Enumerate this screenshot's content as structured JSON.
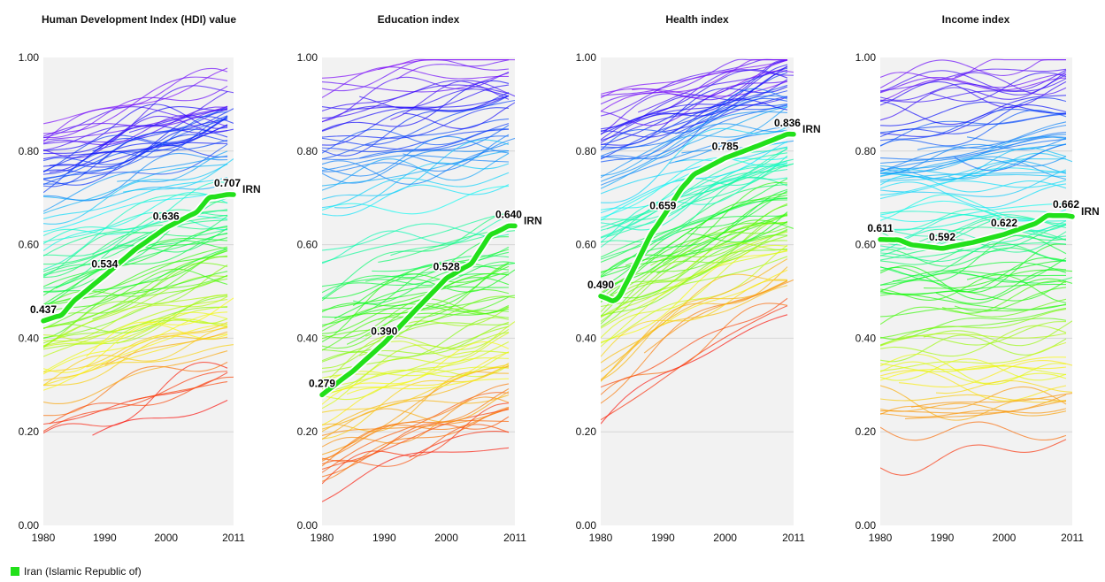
{
  "highlight_color": "#22e01a",
  "legend": {
    "label": "Iran (Islamic Republic of)"
  },
  "chart_data": [
    {
      "type": "line",
      "title": "Human Development Index (HDI) value",
      "xlabel": "",
      "ylabel": "",
      "xlim": [
        1980,
        2011
      ],
      "ylim": [
        0,
        1
      ],
      "x_ticks": [
        "1980",
        "1990",
        "2000",
        "2011"
      ],
      "y_ticks": [
        "0.00",
        "0.20",
        "0.40",
        "0.60",
        "0.80",
        "1.00"
      ],
      "grid": true,
      "background_series_min": [
        0.18,
        0.3
      ],
      "background_series_max": [
        0.85,
        0.94
      ],
      "series": [
        {
          "name": "IRN",
          "x": [
            1980,
            1983,
            1985,
            1990,
            1995,
            2000,
            2005,
            2007,
            2010,
            2011
          ],
          "y": [
            0.437,
            0.45,
            0.48,
            0.534,
            0.59,
            0.636,
            0.67,
            0.7,
            0.707,
            0.707
          ],
          "labels": [
            {
              "x": 1980,
              "text": "0.437"
            },
            {
              "x": 1990,
              "text": "0.534"
            },
            {
              "x": 2000,
              "text": "0.636"
            },
            {
              "x": 2010,
              "text": "0.707"
            }
          ]
        }
      ]
    },
    {
      "type": "line",
      "title": "Education index",
      "xlabel": "",
      "ylabel": "",
      "xlim": [
        1980,
        2011
      ],
      "ylim": [
        0,
        1
      ],
      "x_ticks": [
        "1980",
        "1990",
        "2000",
        "2011"
      ],
      "y_ticks": [
        "0.00",
        "0.20",
        "0.40",
        "0.60",
        "0.80",
        "1.00"
      ],
      "grid": true,
      "background_series_min": [
        0.05,
        0.18
      ],
      "background_series_max": [
        0.95,
        1.0
      ],
      "series": [
        {
          "name": "IRN",
          "x": [
            1980,
            1983,
            1985,
            1990,
            1995,
            2000,
            2004,
            2007,
            2010,
            2011
          ],
          "y": [
            0.279,
            0.31,
            0.33,
            0.39,
            0.46,
            0.528,
            0.56,
            0.62,
            0.64,
            0.64
          ],
          "labels": [
            {
              "x": 1980,
              "text": "0.279"
            },
            {
              "x": 1990,
              "text": "0.390"
            },
            {
              "x": 2000,
              "text": "0.528"
            },
            {
              "x": 2010,
              "text": "0.640"
            }
          ]
        }
      ]
    },
    {
      "type": "line",
      "title": "Health index",
      "xlabel": "",
      "ylabel": "",
      "xlim": [
        1980,
        2011
      ],
      "ylim": [
        0,
        1
      ],
      "x_ticks": [
        "1980",
        "1990",
        "2000",
        "2011"
      ],
      "y_ticks": [
        "0.00",
        "0.20",
        "0.40",
        "0.60",
        "0.80",
        "1.00"
      ],
      "grid": true,
      "background_series_min": [
        0.22,
        0.45
      ],
      "background_series_max": [
        0.9,
        1.0
      ],
      "series": [
        {
          "name": "IRN",
          "x": [
            1980,
            1982,
            1983,
            1985,
            1988,
            1990,
            1993,
            1995,
            2000,
            2005,
            2010,
            2011
          ],
          "y": [
            0.49,
            0.48,
            0.49,
            0.54,
            0.62,
            0.659,
            0.72,
            0.75,
            0.785,
            0.81,
            0.836,
            0.836
          ],
          "labels": [
            {
              "x": 1980,
              "text": "0.490"
            },
            {
              "x": 1990,
              "text": "0.659"
            },
            {
              "x": 2000,
              "text": "0.785"
            },
            {
              "x": 2010,
              "text": "0.836"
            }
          ]
        }
      ]
    },
    {
      "type": "line",
      "title": "Income index",
      "xlabel": "",
      "ylabel": "",
      "xlim": [
        1980,
        2011
      ],
      "ylim": [
        0,
        1
      ],
      "x_ticks": [
        "1980",
        "1990",
        "2000",
        "2011"
      ],
      "y_ticks": [
        "0.00",
        "0.20",
        "0.40",
        "0.60",
        "0.80",
        "1.00"
      ],
      "grid": true,
      "background_series_min": [
        0.12,
        0.15
      ],
      "background_series_max": [
        0.96,
        1.0
      ],
      "series": [
        {
          "name": "IRN",
          "x": [
            1980,
            1983,
            1985,
            1988,
            1990,
            1995,
            2000,
            2005,
            2007,
            2010,
            2011
          ],
          "y": [
            0.611,
            0.61,
            0.6,
            0.595,
            0.592,
            0.605,
            0.622,
            0.645,
            0.662,
            0.662,
            0.66
          ],
          "labels": [
            {
              "x": 1980,
              "text": "0.611"
            },
            {
              "x": 1990,
              "text": "0.592"
            },
            {
              "x": 2000,
              "text": "0.622"
            },
            {
              "x": 2010,
              "text": "0.662"
            }
          ]
        }
      ]
    }
  ]
}
